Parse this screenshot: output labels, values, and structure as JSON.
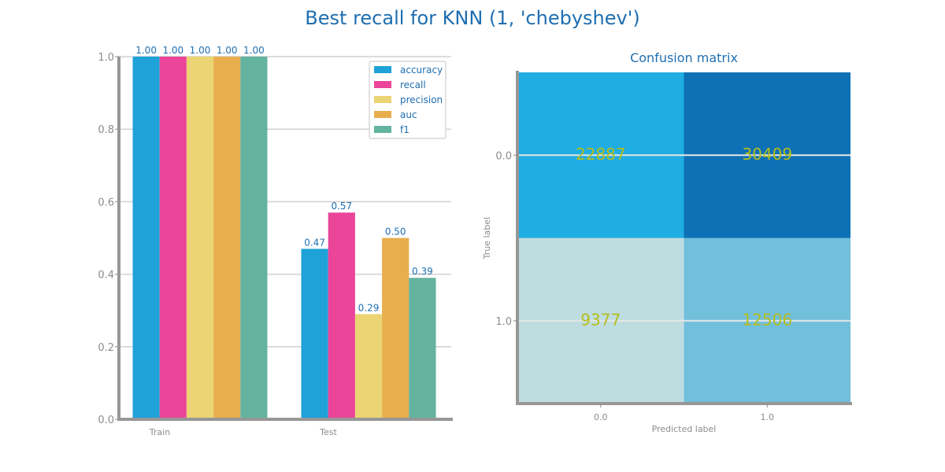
{
  "title": "Best recall for KNN (1, 'chebyshev')",
  "chart_data": [
    {
      "type": "bar",
      "title": "",
      "categories": [
        "Train",
        "Test"
      ],
      "ylim": [
        0,
        1.0
      ],
      "yticks": [
        "0.0",
        "0.2",
        "0.4",
        "0.6",
        "0.8",
        "1.0"
      ],
      "grid": true,
      "legend_position": "top-right",
      "series": [
        {
          "name": "accuracy",
          "color": "#1ea2d8",
          "values": [
            1.0,
            0.47
          ],
          "labels": [
            "1.00",
            "0.47"
          ]
        },
        {
          "name": "recall",
          "color": "#ea4599",
          "values": [
            1.0,
            0.57
          ],
          "labels": [
            "1.00",
            "0.57"
          ]
        },
        {
          "name": "precision",
          "color": "#ebd473",
          "values": [
            1.0,
            0.29
          ],
          "labels": [
            "1.00",
            "0.29"
          ]
        },
        {
          "name": "auc",
          "color": "#e8ae4d",
          "values": [
            1.0,
            0.5
          ],
          "labels": [
            "1.00",
            "0.50"
          ]
        },
        {
          "name": "f1",
          "color": "#63b39f",
          "values": [
            1.0,
            0.39
          ],
          "labels": [
            "1.00",
            "0.39"
          ]
        }
      ]
    },
    {
      "type": "heatmap",
      "title": "Confusion matrix",
      "xlabel": "Predicted label",
      "ylabel": "True label",
      "x_categories": [
        "0.0",
        "1.0"
      ],
      "y_categories": [
        "0.0",
        "1.0"
      ],
      "values": [
        [
          22887,
          30409
        ],
        [
          9377,
          12506
        ]
      ],
      "cell_colors": [
        [
          "#1fade3",
          "#0f71b5"
        ],
        [
          "#bedde1",
          "#72bfdc"
        ]
      ]
    }
  ]
}
